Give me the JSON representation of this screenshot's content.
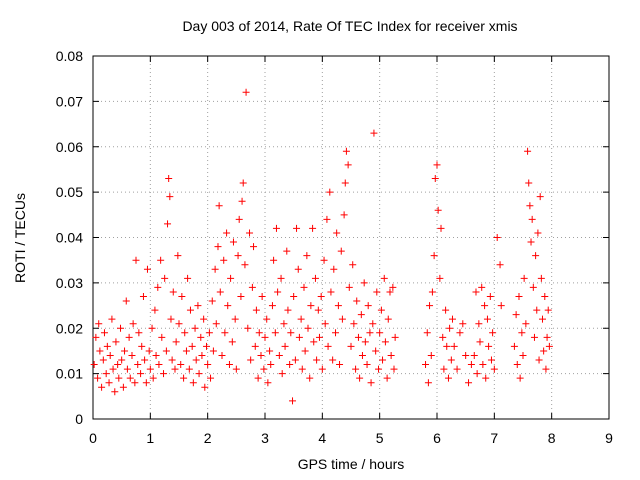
{
  "chart_data": {
    "type": "scatter",
    "title": "Day 003 of 2014, Rate Of TEC Index for receiver xmis",
    "xlabel": "GPS time / hours",
    "ylabel": "ROTI / TECUs",
    "xlim": [
      0,
      9
    ],
    "ylim": [
      0,
      0.08
    ],
    "xticks": [
      "0",
      "1",
      "2",
      "3",
      "4",
      "5",
      "6",
      "7",
      "8",
      "9"
    ],
    "yticks": [
      "0",
      "0.01",
      "0.02",
      "0.03",
      "0.04",
      "0.05",
      "0.06",
      "0.07",
      "0.08"
    ],
    "grid": true,
    "marker": "+",
    "series": [
      {
        "name": "ROTI",
        "color": "#ff0000",
        "points": [
          [
            0.02,
            0.012
          ],
          [
            0.05,
            0.018
          ],
          [
            0.08,
            0.009
          ],
          [
            0.1,
            0.021
          ],
          [
            0.12,
            0.015
          ],
          [
            0.15,
            0.007
          ],
          [
            0.18,
            0.013
          ],
          [
            0.2,
            0.019
          ],
          [
            0.23,
            0.01
          ],
          [
            0.25,
            0.016
          ],
          [
            0.28,
            0.008
          ],
          [
            0.3,
            0.014
          ],
          [
            0.33,
            0.022
          ],
          [
            0.35,
            0.011
          ],
          [
            0.38,
            0.006
          ],
          [
            0.4,
            0.017
          ],
          [
            0.43,
            0.012
          ],
          [
            0.45,
            0.009
          ],
          [
            0.48,
            0.02
          ],
          [
            0.5,
            0.013
          ],
          [
            0.53,
            0.007
          ],
          [
            0.55,
            0.015
          ],
          [
            0.58,
            0.026
          ],
          [
            0.6,
            0.011
          ],
          [
            0.63,
            0.018
          ],
          [
            0.65,
            0.009
          ],
          [
            0.68,
            0.014
          ],
          [
            0.7,
            0.021
          ],
          [
            0.73,
            0.008
          ],
          [
            0.75,
            0.035
          ],
          [
            0.78,
            0.012
          ],
          [
            0.8,
            0.019
          ],
          [
            0.83,
            0.01
          ],
          [
            0.85,
            0.016
          ],
          [
            0.88,
            0.027
          ],
          [
            0.9,
            0.013
          ],
          [
            0.93,
            0.008
          ],
          [
            0.95,
            0.033
          ],
          [
            0.98,
            0.015
          ],
          [
            1.0,
            0.011
          ],
          [
            1.03,
            0.02
          ],
          [
            1.05,
            0.009
          ],
          [
            1.08,
            0.024
          ],
          [
            1.1,
            0.014
          ],
          [
            1.13,
            0.029
          ],
          [
            1.15,
            0.012
          ],
          [
            1.18,
            0.035
          ],
          [
            1.2,
            0.018
          ],
          [
            1.23,
            0.01
          ],
          [
            1.25,
            0.031
          ],
          [
            1.28,
            0.015
          ],
          [
            1.3,
            0.043
          ],
          [
            1.32,
            0.053
          ],
          [
            1.34,
            0.049
          ],
          [
            1.36,
            0.022
          ],
          [
            1.38,
            0.013
          ],
          [
            1.4,
            0.028
          ],
          [
            1.43,
            0.011
          ],
          [
            1.45,
            0.017
          ],
          [
            1.48,
            0.036
          ],
          [
            1.5,
            0.021
          ],
          [
            1.53,
            0.012
          ],
          [
            1.55,
            0.027
          ],
          [
            1.58,
            0.009
          ],
          [
            1.6,
            0.019
          ],
          [
            1.63,
            0.015
          ],
          [
            1.65,
            0.031
          ],
          [
            1.68,
            0.011
          ],
          [
            1.7,
            0.024
          ],
          [
            1.73,
            0.016
          ],
          [
            1.75,
            0.008
          ],
          [
            1.78,
            0.02
          ],
          [
            1.8,
            0.013
          ],
          [
            1.83,
            0.025
          ],
          [
            1.85,
            0.01
          ],
          [
            1.88,
            0.018
          ],
          [
            1.9,
            0.014
          ],
          [
            1.93,
            0.022
          ],
          [
            1.95,
            0.007
          ],
          [
            1.98,
            0.016
          ],
          [
            2.0,
            0.012
          ],
          [
            2.03,
            0.019
          ],
          [
            2.05,
            0.009
          ],
          [
            2.08,
            0.026
          ],
          [
            2.1,
            0.015
          ],
          [
            2.13,
            0.033
          ],
          [
            2.15,
            0.021
          ],
          [
            2.18,
            0.038
          ],
          [
            2.2,
            0.047
          ],
          [
            2.22,
            0.028
          ],
          [
            2.25,
            0.014
          ],
          [
            2.28,
            0.035
          ],
          [
            2.3,
            0.019
          ],
          [
            2.33,
            0.041
          ],
          [
            2.35,
            0.025
          ],
          [
            2.38,
            0.012
          ],
          [
            2.4,
            0.031
          ],
          [
            2.43,
            0.017
          ],
          [
            2.45,
            0.039
          ],
          [
            2.48,
            0.022
          ],
          [
            2.5,
            0.011
          ],
          [
            2.53,
            0.036
          ],
          [
            2.55,
            0.044
          ],
          [
            2.58,
            0.027
          ],
          [
            2.6,
            0.048
          ],
          [
            2.62,
            0.052
          ],
          [
            2.65,
            0.034
          ],
          [
            2.67,
            0.072
          ],
          [
            2.7,
            0.02
          ],
          [
            2.73,
            0.041
          ],
          [
            2.75,
            0.013
          ],
          [
            2.78,
            0.029
          ],
          [
            2.8,
            0.038
          ],
          [
            2.83,
            0.016
          ],
          [
            2.85,
            0.024
          ],
          [
            2.88,
            0.009
          ],
          [
            2.9,
            0.019
          ],
          [
            2.93,
            0.014
          ],
          [
            2.95,
            0.027
          ],
          [
            2.98,
            0.011
          ],
          [
            3.0,
            0.018
          ],
          [
            3.03,
            0.022
          ],
          [
            3.05,
            0.008
          ],
          [
            3.08,
            0.015
          ],
          [
            3.1,
            0.012
          ],
          [
            3.13,
            0.025
          ],
          [
            3.15,
            0.035
          ],
          [
            3.18,
            0.019
          ],
          [
            3.2,
            0.042
          ],
          [
            3.22,
            0.028
          ],
          [
            3.25,
            0.014
          ],
          [
            3.28,
            0.031
          ],
          [
            3.3,
            0.01
          ],
          [
            3.33,
            0.021
          ],
          [
            3.35,
            0.016
          ],
          [
            3.38,
            0.037
          ],
          [
            3.4,
            0.024
          ],
          [
            3.43,
            0.012
          ],
          [
            3.45,
            0.019
          ],
          [
            3.48,
            0.004
          ],
          [
            3.5,
            0.027
          ],
          [
            3.53,
            0.013
          ],
          [
            3.55,
            0.042
          ],
          [
            3.58,
            0.033
          ],
          [
            3.6,
            0.018
          ],
          [
            3.63,
            0.022
          ],
          [
            3.65,
            0.011
          ],
          [
            3.68,
            0.029
          ],
          [
            3.7,
            0.015
          ],
          [
            3.73,
            0.036
          ],
          [
            3.75,
            0.02
          ],
          [
            3.78,
            0.009
          ],
          [
            3.8,
            0.025
          ],
          [
            3.83,
            0.042
          ],
          [
            3.85,
            0.017
          ],
          [
            3.88,
            0.031
          ],
          [
            3.9,
            0.013
          ],
          [
            3.93,
            0.024
          ],
          [
            3.95,
            0.018
          ],
          [
            3.98,
            0.027
          ],
          [
            4.0,
            0.011
          ],
          [
            4.03,
            0.035
          ],
          [
            4.05,
            0.021
          ],
          [
            4.08,
            0.044
          ],
          [
            4.1,
            0.016
          ],
          [
            4.13,
            0.05
          ],
          [
            4.15,
            0.028
          ],
          [
            4.18,
            0.013
          ],
          [
            4.2,
            0.033
          ],
          [
            4.23,
            0.019
          ],
          [
            4.25,
            0.041
          ],
          [
            4.28,
            0.025
          ],
          [
            4.3,
            0.012
          ],
          [
            4.33,
            0.037
          ],
          [
            4.35,
            0.022
          ],
          [
            4.38,
            0.045
          ],
          [
            4.4,
            0.052
          ],
          [
            4.42,
            0.059
          ],
          [
            4.45,
            0.056
          ],
          [
            4.47,
            0.029
          ],
          [
            4.5,
            0.016
          ],
          [
            4.53,
            0.034
          ],
          [
            4.55,
            0.021
          ],
          [
            4.58,
            0.011
          ],
          [
            4.6,
            0.026
          ],
          [
            4.63,
            0.018
          ],
          [
            4.65,
            0.009
          ],
          [
            4.68,
            0.023
          ],
          [
            4.7,
            0.014
          ],
          [
            4.73,
            0.03
          ],
          [
            4.75,
            0.017
          ],
          [
            4.78,
            0.012
          ],
          [
            4.8,
            0.025
          ],
          [
            4.83,
            0.019
          ],
          [
            4.85,
            0.008
          ],
          [
            4.88,
            0.021
          ],
          [
            4.9,
            0.063
          ],
          [
            4.93,
            0.015
          ],
          [
            4.95,
            0.028
          ],
          [
            4.98,
            0.011
          ],
          [
            5.0,
            0.019
          ],
          [
            5.03,
            0.024
          ],
          [
            5.05,
            0.013
          ],
          [
            5.08,
            0.031
          ],
          [
            5.1,
            0.017
          ],
          [
            5.13,
            0.009
          ],
          [
            5.15,
            0.022
          ],
          [
            5.18,
            0.028
          ],
          [
            5.2,
            0.014
          ],
          [
            5.23,
            0.029
          ],
          [
            5.25,
            0.011
          ],
          [
            5.27,
            0.018
          ],
          [
            5.8,
            0.012
          ],
          [
            5.83,
            0.019
          ],
          [
            5.85,
            0.008
          ],
          [
            5.87,
            0.025
          ],
          [
            5.9,
            0.014
          ],
          [
            5.92,
            0.028
          ],
          [
            5.95,
            0.036
          ],
          [
            5.97,
            0.053
          ],
          [
            6.0,
            0.056
          ],
          [
            6.02,
            0.046
          ],
          [
            6.05,
            0.031
          ],
          [
            6.07,
            0.042
          ],
          [
            6.1,
            0.018
          ],
          [
            6.12,
            0.011
          ],
          [
            6.15,
            0.024
          ],
          [
            6.17,
            0.016
          ],
          [
            6.2,
            0.009
          ],
          [
            6.22,
            0.02
          ],
          [
            6.25,
            0.013
          ],
          [
            6.27,
            0.022
          ],
          [
            6.3,
            0.016
          ],
          [
            6.35,
            0.011
          ],
          [
            6.4,
            0.019
          ],
          [
            6.45,
            0.021
          ],
          [
            6.5,
            0.014
          ],
          [
            6.55,
            0.008
          ],
          [
            6.6,
            0.012
          ],
          [
            6.65,
            0.014
          ],
          [
            6.68,
            0.028
          ],
          [
            6.7,
            0.01
          ],
          [
            6.73,
            0.021
          ],
          [
            6.75,
            0.017
          ],
          [
            6.78,
            0.029
          ],
          [
            6.8,
            0.012
          ],
          [
            6.83,
            0.025
          ],
          [
            6.85,
            0.009
          ],
          [
            6.88,
            0.022
          ],
          [
            6.9,
            0.016
          ],
          [
            6.93,
            0.027
          ],
          [
            6.95,
            0.013
          ],
          [
            6.97,
            0.019
          ],
          [
            7.0,
            0.011
          ],
          [
            7.05,
            0.04
          ],
          [
            7.1,
            0.034
          ],
          [
            7.12,
            0.025
          ],
          [
            7.35,
            0.016
          ],
          [
            7.38,
            0.023
          ],
          [
            7.4,
            0.012
          ],
          [
            7.43,
            0.027
          ],
          [
            7.45,
            0.009
          ],
          [
            7.48,
            0.019
          ],
          [
            7.5,
            0.014
          ],
          [
            7.52,
            0.031
          ],
          [
            7.55,
            0.021
          ],
          [
            7.58,
            0.059
          ],
          [
            7.6,
            0.052
          ],
          [
            7.62,
            0.047
          ],
          [
            7.64,
            0.039
          ],
          [
            7.66,
            0.044
          ],
          [
            7.68,
            0.029
          ],
          [
            7.7,
            0.018
          ],
          [
            7.72,
            0.036
          ],
          [
            7.74,
            0.024
          ],
          [
            7.76,
            0.041
          ],
          [
            7.78,
            0.013
          ],
          [
            7.8,
            0.049
          ],
          [
            7.82,
            0.031
          ],
          [
            7.84,
            0.022
          ],
          [
            7.86,
            0.015
          ],
          [
            7.88,
            0.027
          ],
          [
            7.9,
            0.011
          ],
          [
            7.92,
            0.018
          ],
          [
            7.94,
            0.024
          ],
          [
            7.96,
            0.016
          ]
        ]
      }
    ]
  }
}
